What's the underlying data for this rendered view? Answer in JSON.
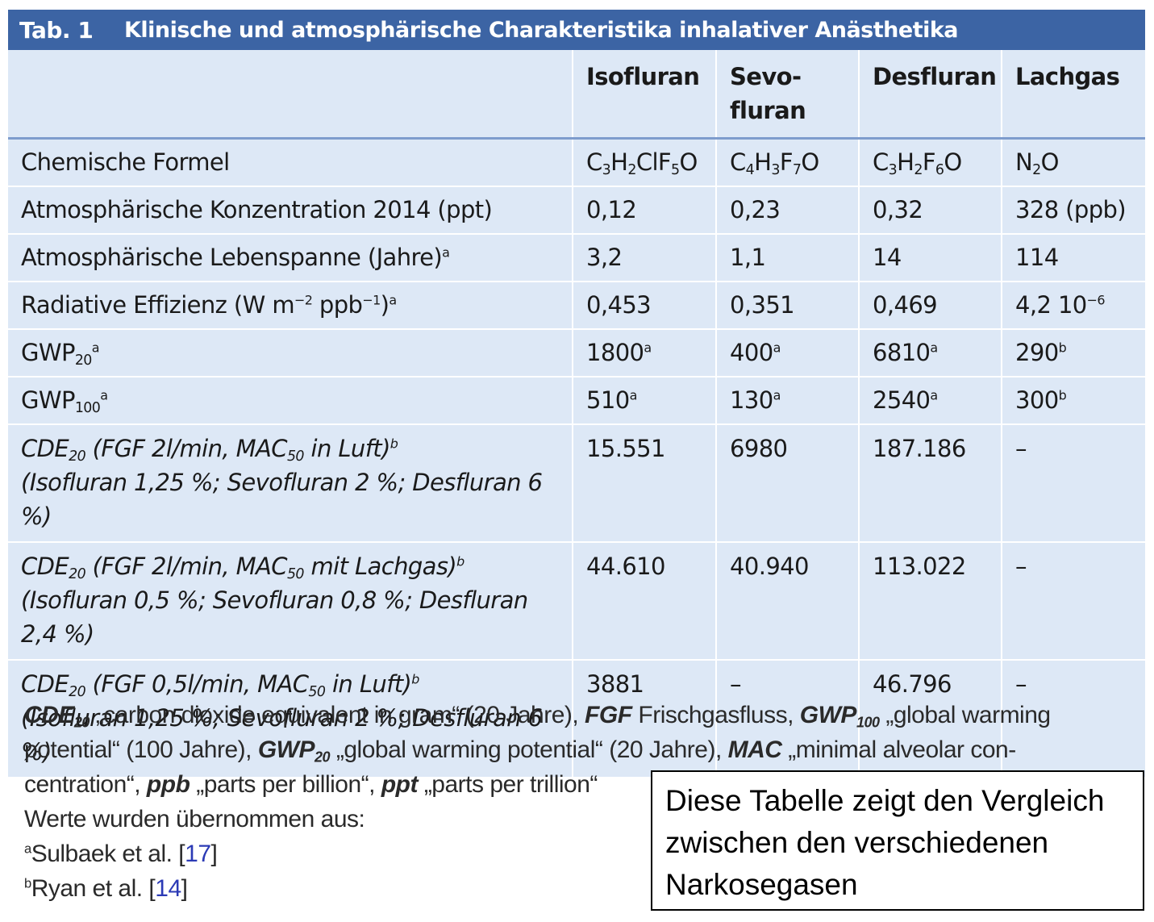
{
  "title": {
    "number": "Tab. 1",
    "text": "Klinische und atmosphärische Charakteristika inhalativer Anästhetika"
  },
  "header": {
    "col1": "Isofluran",
    "col2_line1": "Sevo-",
    "col2_line2": "fluran",
    "col3": "Desfluran",
    "col4": "Lachgas"
  },
  "rows": {
    "formula": {
      "label": "Chemische Formel",
      "iso": {
        "a": "C",
        "b": "3",
        "c": "H",
        "d": "2",
        "e": "ClF",
        "f": "5",
        "g": "O"
      },
      "sevo": {
        "a": "C",
        "b": "4",
        "c": "H",
        "d": "3",
        "e": "F",
        "f": "7",
        "g": "O"
      },
      "des": {
        "a": "C",
        "b": "3",
        "c": "H",
        "d": "2",
        "e": "F",
        "f": "6",
        "g": "O"
      },
      "n2o": {
        "a": "N",
        "b": "2",
        "c": "O"
      }
    },
    "konz": {
      "label": "Atmosphärische Konzentration 2014 (ppt)",
      "iso": "0,12",
      "sevo": "0,23",
      "des": "0,32",
      "n2o": "328 (ppb)"
    },
    "leben": {
      "label": "Atmosphärische Lebenspanne (Jahre)",
      "sup": "a",
      "iso": "3,2",
      "sevo": "1,1",
      "des": "14",
      "n2o": "114"
    },
    "rad": {
      "label_a": "Radiative Effizienz (W m",
      "exp1": "−2",
      "label_b": " ppb",
      "exp2": "−1",
      "label_c": ")",
      "sup": "a",
      "iso": "0,453",
      "sevo": "0,351",
      "des": "0,469",
      "n2o": "4,2 10",
      "n2o_exp": "−6"
    },
    "gwp20": {
      "label": "GWP",
      "sub": "20",
      "sup": "a",
      "iso": "1800",
      "iso_sup": "a",
      "sevo": "400",
      "sevo_sup": "a",
      "des": "6810",
      "des_sup": "a",
      "n2o": "290",
      "n2o_sup": "b"
    },
    "gwp100": {
      "label": "GWP",
      "sub": "100",
      "sup": "a",
      "iso": "510",
      "iso_sup": "a",
      "sevo": "130",
      "sevo_sup": "a",
      "des": "2540",
      "des_sup": "a",
      "n2o": "300",
      "n2o_sup": "b"
    },
    "cde1": {
      "l1a": "CDE",
      "l1sub": "20",
      "l1b": " (FGF 2l/min, MAC",
      "l1sub2": "50",
      "l1c": " in Luft)",
      "l1sup": "b",
      "l2": "(Isofluran 1,25 %; Sevofluran 2 %; Desfluran 6 %)",
      "iso": "15.551",
      "sevo": "6980",
      "des": "187.186",
      "n2o": "–"
    },
    "cde2": {
      "l1a": "CDE",
      "l1sub": "20",
      "l1b": " (FGF 2l/min, MAC",
      "l1sub2": "50",
      "l1c": " mit Lachgas)",
      "l1sup": "b",
      "l2": "(Isofluran 0,5 %; Sevofluran 0,8 %; Desfluran",
      "l3": "2,4 %)",
      "iso": "44.610",
      "sevo": "40.940",
      "des": "113.022",
      "n2o": "–"
    },
    "cde3": {
      "l1a": "CDE",
      "l1sub": "20",
      "l1b": " (FGF 0,5l/min, MAC",
      "l1sub2": "50",
      "l1c": " in Luft)",
      "l1sup": "b",
      "l2": "(Isofluran 1,25 %; Sevofluran 2 %; Desfluran 6 %)",
      "iso": "3881",
      "sevo": "–",
      "des": "46.796",
      "n2o": "–"
    }
  },
  "footnotes": {
    "cde": "CDE",
    "cde_sub": "20",
    "cde_text": " „carbon dioxide equivalent in gram“ (20 Jahre), ",
    "fgf": "FGF",
    "fgf_text": " Frischgasfluss, ",
    "gwp100": "GWP",
    "gwp100_sub": "100",
    "gwp100_text": " „global warming",
    "line2_a": "potential“ (100 Jahre), ",
    "gwp20": "GWP",
    "gwp20_sub": "20",
    "gwp20_text": " „global warming potential“ (20 Jahre), ",
    "mac": "MAC",
    "mac_text": " „minimal alveolar con-",
    "line3_a": "centration“, ",
    "ppb": "ppb",
    "ppb_text": " „parts per billion“, ",
    "ppt": "ppt",
    "ppt_text": " „parts per trillion“",
    "line4": "Werte wurden übernommen aus:",
    "ref_a_sup": "a",
    "ref_a_text": "Sulbaek et al. [",
    "ref_a_num": "17",
    "ref_a_close": "]",
    "ref_b_sup": "b",
    "ref_b_text": "Ryan et al. [",
    "ref_b_num": "14",
    "ref_b_close": "]"
  },
  "note": "Diese Tabelle zeigt den Vergleich zwischen den verschiedenen Narkosegasen"
}
